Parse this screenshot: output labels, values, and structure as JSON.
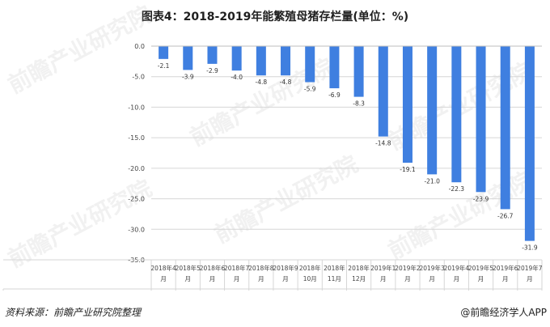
{
  "header": {
    "title": "图表4：2018-2019年能繁殖母猪存栏量(单位：%)"
  },
  "footer": {
    "source": "资料来源：前瞻产业研究院整理",
    "brand": "@前瞻经济学人APP"
  },
  "watermark": {
    "text": "前瞻产业研究院"
  },
  "colors": {
    "bar": "#3f7fe0",
    "grid": "#d6d6d6",
    "text": "#444444"
  },
  "chart_data": {
    "type": "bar",
    "ylim": [
      -35.0,
      0.0
    ],
    "yticks": [
      "0.0",
      "-5.0",
      "-10.0",
      "-15.0",
      "-20.0",
      "-25.0",
      "-30.0",
      "-35.0"
    ],
    "ytick_values": [
      0,
      -5,
      -10,
      -15,
      -20,
      -25,
      -30,
      -35
    ],
    "categories": [
      [
        "2018年4",
        "月"
      ],
      [
        "2018年5",
        "月"
      ],
      [
        "2018年6",
        "月"
      ],
      [
        "2018年7",
        "月"
      ],
      [
        "2018年8",
        "月"
      ],
      [
        "2018年9",
        "月"
      ],
      [
        "2018年",
        "10月"
      ],
      [
        "2018年",
        "11月"
      ],
      [
        "2018年",
        "12月"
      ],
      [
        "2019年1",
        "月"
      ],
      [
        "2019年2",
        "月"
      ],
      [
        "2019年3",
        "月"
      ],
      [
        "2019年4",
        "月"
      ],
      [
        "2019年5",
        "月"
      ],
      [
        "2019年6",
        "月"
      ],
      [
        "2019年7",
        "月"
      ]
    ],
    "series": [
      {
        "name": "能繁殖母猪存栏量（单位：%）",
        "values": [
          -2.1,
          -3.9,
          -2.9,
          -4.0,
          -4.8,
          -4.8,
          -5.9,
          -6.9,
          -8.3,
          -14.8,
          -19.1,
          -21.0,
          -22.3,
          -23.9,
          -26.7,
          -31.9
        ],
        "labels": [
          "-2.1",
          "-3.9",
          "-2.9",
          "-4.0",
          "-4.8",
          "-4.8",
          "-5.9",
          "-6.9",
          "-8.3",
          "-14.8",
          "-19.1",
          "-21.0",
          "-22.3",
          "-23.9",
          "-26.7",
          "-31.9"
        ]
      }
    ],
    "grid": true,
    "data_table": true
  }
}
